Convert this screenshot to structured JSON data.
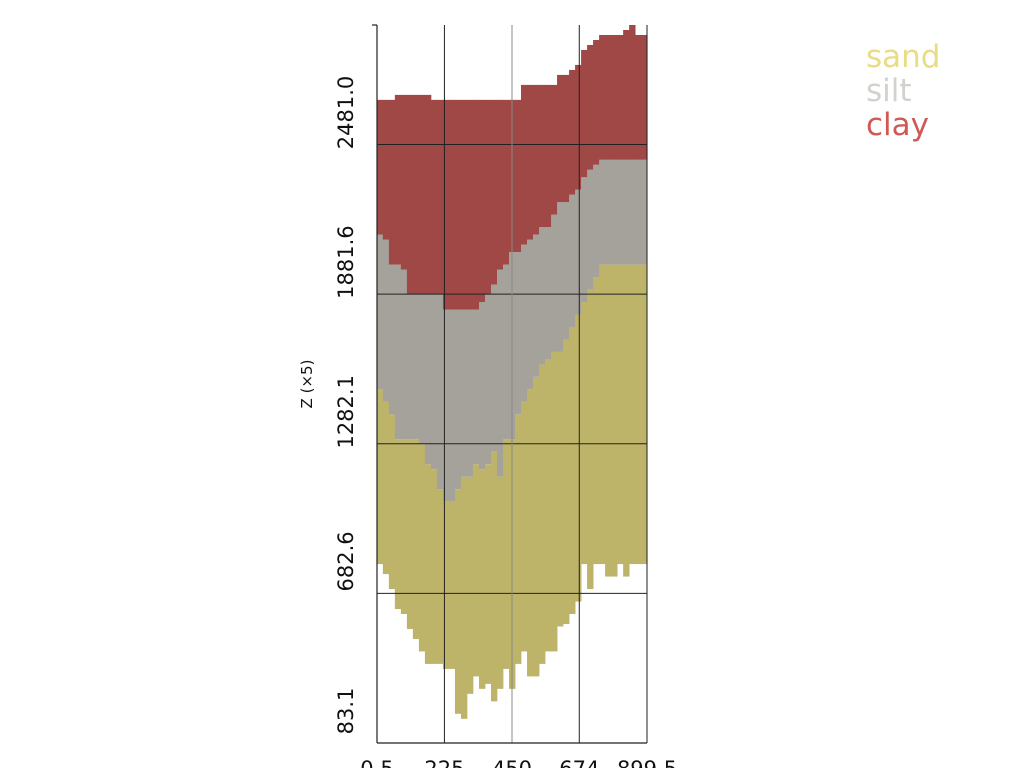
{
  "chart_data": {
    "type": "area",
    "title": "",
    "xlabel": "",
    "ylabel": "Z (×5)",
    "xlim": [
      0.5,
      899.5
    ],
    "ylim": [
      83.1,
      2960
    ],
    "x_ticks": [
      0.5,
      225,
      450,
      674,
      899.5
    ],
    "x_tick_labels": [
      "0.5",
      "225",
      "450",
      "674",
      "899.5"
    ],
    "y_ticks": [
      83.1,
      682.6,
      1282.1,
      1881.6,
      2481.0
    ],
    "y_tick_labels": [
      "83.1",
      "682.6",
      "1282.1",
      "1881.6",
      "2481.0"
    ],
    "grid": true,
    "legend": "top-right",
    "series": [
      {
        "name": "sand",
        "color": "#bdb46a",
        "legend_color": "#e8dc85"
      },
      {
        "name": "silt",
        "color": "#a5a29b",
        "legend_color": "#d3d1cc"
      },
      {
        "name": "clay",
        "color": "#a04846",
        "legend_color": "#cf5a55"
      }
    ],
    "x": [
      10,
      30,
      50,
      70,
      90,
      110,
      130,
      150,
      170,
      190,
      210,
      230,
      250,
      270,
      290,
      310,
      330,
      350,
      370,
      390,
      410,
      430,
      450,
      470,
      490,
      510,
      530,
      550,
      570,
      590,
      610,
      630,
      650,
      670,
      690,
      710,
      730,
      750,
      770,
      790,
      810,
      830,
      850,
      870,
      890
    ],
    "sand_bottom": [
      800,
      760,
      700,
      620,
      600,
      540,
      500,
      450,
      400,
      400,
      400,
      380,
      380,
      200,
      180,
      280,
      350,
      300,
      320,
      250,
      300,
      380,
      300,
      400,
      450,
      350,
      350,
      400,
      450,
      450,
      550,
      560,
      600,
      650,
      800,
      700,
      800,
      800,
      750,
      750,
      800,
      750,
      800,
      800,
      800
    ],
    "silt_bottom": [
      1500,
      1450,
      1400,
      1300,
      1300,
      1300,
      1300,
      1280,
      1200,
      1180,
      1100,
      1050,
      1050,
      1100,
      1150,
      1150,
      1200,
      1180,
      1200,
      1250,
      1150,
      1300,
      1300,
      1400,
      1450,
      1500,
      1550,
      1600,
      1620,
      1650,
      1650,
      1700,
      1750,
      1800,
      1850,
      1900,
      1950,
      2000,
      2000,
      2000,
      2000,
      2000,
      2000,
      2000,
      2000
    ],
    "clay_bottom": [
      2120,
      2100,
      2000,
      2000,
      1980,
      1880,
      1880,
      1880,
      1880,
      1880,
      1880,
      1820,
      1820,
      1820,
      1820,
      1820,
      1820,
      1850,
      1880,
      1920,
      1980,
      2000,
      2050,
      2050,
      2080,
      2100,
      2120,
      2150,
      2150,
      2200,
      2250,
      2250,
      2280,
      2300,
      2350,
      2380,
      2400,
      2420,
      2420,
      2420,
      2420,
      2420,
      2420,
      2420,
      2420
    ],
    "top": [
      2660,
      2660,
      2660,
      2680,
      2680,
      2680,
      2680,
      2680,
      2680,
      2660,
      2660,
      2660,
      2660,
      2660,
      2660,
      2660,
      2660,
      2660,
      2660,
      2660,
      2660,
      2660,
      2660,
      2660,
      2720,
      2720,
      2720,
      2720,
      2720,
      2720,
      2760,
      2760,
      2780,
      2800,
      2860,
      2880,
      2900,
      2920,
      2920,
      2920,
      2920,
      2940,
      2960,
      2920,
      2920
    ]
  }
}
